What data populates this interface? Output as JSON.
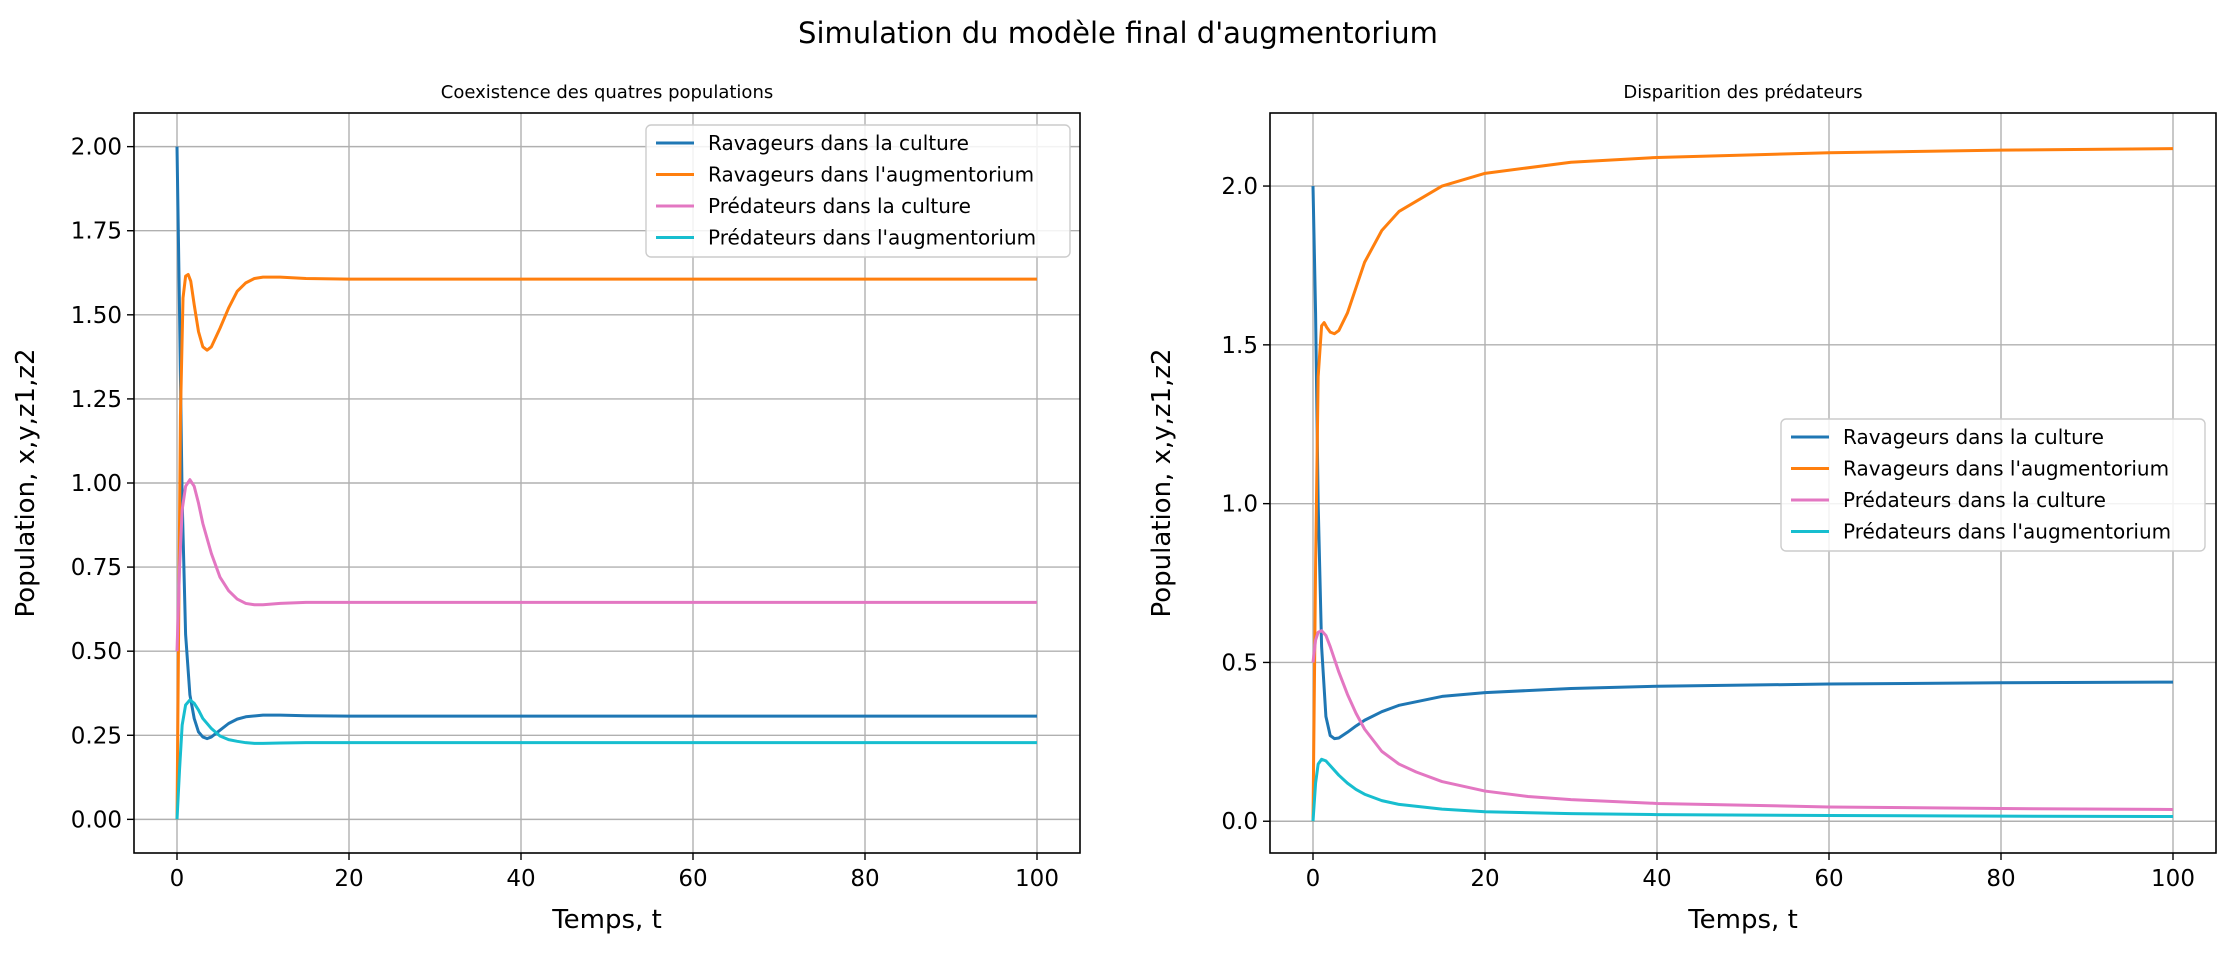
{
  "suptitle": "Simulation du modèle final d'augmentorium",
  "chart_data": [
    {
      "type": "line",
      "title": "Coexistence des quatres populations",
      "xlabel": "Temps, t",
      "ylabel": "Population, x,y,z1,z2",
      "xlim": [
        -5,
        105
      ],
      "ylim": [
        -0.1,
        2.1
      ],
      "xticks": [
        0,
        20,
        40,
        60,
        80,
        100
      ],
      "xtick_labels": [
        "0",
        "20",
        "40",
        "60",
        "80",
        "100"
      ],
      "yticks": [
        0,
        0.25,
        0.5,
        0.75,
        1.0,
        1.25,
        1.5,
        1.75,
        2.0
      ],
      "ytick_labels": [
        "0.00",
        "0.25",
        "0.50",
        "0.75",
        "1.00",
        "1.25",
        "1.50",
        "1.75",
        "2.00"
      ],
      "grid": true,
      "legend_position": "upper right",
      "series": [
        {
          "name": "Ravageurs dans la culture",
          "color": "#1f77b4",
          "x": [
            0,
            0.3,
            0.6,
            1,
            1.5,
            2,
            2.5,
            3,
            3.5,
            4,
            5,
            6,
            7,
            8,
            10,
            12,
            15,
            20,
            30,
            50,
            100
          ],
          "y": [
            2.0,
            1.5,
            0.95,
            0.55,
            0.37,
            0.3,
            0.26,
            0.245,
            0.24,
            0.245,
            0.265,
            0.285,
            0.298,
            0.305,
            0.31,
            0.31,
            0.308,
            0.307,
            0.307,
            0.307,
            0.307
          ]
        },
        {
          "name": "Ravageurs dans l'augmentorium",
          "color": "#ff7f0e",
          "x": [
            0,
            0.2,
            0.4,
            0.7,
            1,
            1.3,
            1.6,
            2,
            2.5,
            3,
            3.5,
            4,
            5,
            6,
            7,
            8,
            9,
            10,
            12,
            15,
            20,
            30,
            50,
            100
          ],
          "y": [
            0.0,
            0.6,
            1.2,
            1.55,
            1.615,
            1.62,
            1.6,
            1.53,
            1.45,
            1.405,
            1.395,
            1.405,
            1.46,
            1.52,
            1.57,
            1.595,
            1.608,
            1.612,
            1.612,
            1.608,
            1.606,
            1.606,
            1.606,
            1.606
          ]
        },
        {
          "name": "Prédateurs dans la culture",
          "color": "#e377c2",
          "x": [
            0,
            0.3,
            0.6,
            1,
            1.5,
            2,
            2.5,
            3,
            4,
            5,
            6,
            7,
            8,
            9,
            10,
            12,
            15,
            20,
            30,
            50,
            100
          ],
          "y": [
            0.5,
            0.75,
            0.92,
            0.99,
            1.01,
            0.99,
            0.94,
            0.88,
            0.79,
            0.72,
            0.68,
            0.655,
            0.642,
            0.638,
            0.638,
            0.642,
            0.645,
            0.645,
            0.645,
            0.645,
            0.645
          ]
        },
        {
          "name": "Prédateurs dans l'augmentorium",
          "color": "#17becf",
          "x": [
            0,
            0.3,
            0.6,
            1,
            1.5,
            2,
            2.5,
            3,
            4,
            5,
            6,
            7,
            8,
            9,
            10,
            12,
            15,
            20,
            30,
            50,
            100
          ],
          "y": [
            0.0,
            0.15,
            0.28,
            0.34,
            0.355,
            0.345,
            0.325,
            0.3,
            0.27,
            0.248,
            0.237,
            0.232,
            0.228,
            0.226,
            0.226,
            0.227,
            0.228,
            0.228,
            0.228,
            0.228,
            0.228
          ]
        }
      ]
    },
    {
      "type": "line",
      "title": "Disparition des prédateurs",
      "xlabel": "Temps, t",
      "ylabel": "Population, x,y,z1,z2",
      "xlim": [
        -5,
        105
      ],
      "ylim": [
        -0.1,
        2.23
      ],
      "xticks": [
        0,
        20,
        40,
        60,
        80,
        100
      ],
      "xtick_labels": [
        "0",
        "20",
        "40",
        "60",
        "80",
        "100"
      ],
      "yticks": [
        0,
        0.5,
        1.0,
        1.5,
        2.0
      ],
      "ytick_labels": [
        "0.0",
        "0.5",
        "1.0",
        "1.5",
        "2.0"
      ],
      "grid": true,
      "legend_position": "center right",
      "series": [
        {
          "name": "Ravageurs dans la culture",
          "color": "#1f77b4",
          "x": [
            0,
            0.3,
            0.6,
            1,
            1.5,
            2,
            2.5,
            3,
            4,
            5,
            6,
            8,
            10,
            15,
            20,
            30,
            40,
            60,
            80,
            100
          ],
          "y": [
            2.0,
            1.6,
            1.0,
            0.55,
            0.33,
            0.27,
            0.26,
            0.262,
            0.28,
            0.3,
            0.318,
            0.345,
            0.365,
            0.393,
            0.405,
            0.418,
            0.425,
            0.432,
            0.436,
            0.438
          ]
        },
        {
          "name": "Ravageurs dans l'augmentorium",
          "color": "#ff7f0e",
          "x": [
            0,
            0.3,
            0.6,
            1,
            1.3,
            1.6,
            2,
            2.5,
            3,
            4,
            5,
            6,
            8,
            10,
            15,
            20,
            30,
            40,
            60,
            80,
            100
          ],
          "y": [
            0.0,
            0.8,
            1.4,
            1.56,
            1.57,
            1.555,
            1.54,
            1.535,
            1.545,
            1.6,
            1.68,
            1.76,
            1.86,
            1.92,
            2.0,
            2.04,
            2.075,
            2.09,
            2.105,
            2.113,
            2.118
          ]
        },
        {
          "name": "Prédateurs dans la culture",
          "color": "#e377c2",
          "x": [
            0,
            0.3,
            0.6,
            1,
            1.5,
            2,
            3,
            4,
            5,
            6,
            8,
            10,
            12,
            15,
            20,
            25,
            30,
            40,
            60,
            80,
            100
          ],
          "y": [
            0.5,
            0.57,
            0.595,
            0.6,
            0.585,
            0.55,
            0.47,
            0.4,
            0.34,
            0.29,
            0.22,
            0.18,
            0.155,
            0.125,
            0.095,
            0.078,
            0.068,
            0.056,
            0.045,
            0.04,
            0.037
          ]
        },
        {
          "name": "Prédateurs dans l'augmentorium",
          "color": "#17becf",
          "x": [
            0,
            0.3,
            0.6,
            1,
            1.5,
            2,
            3,
            4,
            5,
            6,
            8,
            10,
            15,
            20,
            30,
            40,
            60,
            80,
            100
          ],
          "y": [
            0.0,
            0.12,
            0.18,
            0.195,
            0.19,
            0.175,
            0.145,
            0.12,
            0.1,
            0.085,
            0.065,
            0.053,
            0.038,
            0.03,
            0.024,
            0.021,
            0.018,
            0.016,
            0.015
          ]
        }
      ]
    }
  ]
}
